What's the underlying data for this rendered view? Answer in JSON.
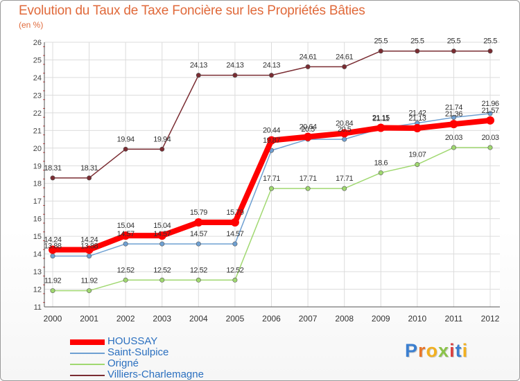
{
  "header": {
    "title": "Evolution du Taux de Taxe Foncière sur les Propriétés Bâties",
    "subtitle": "(en %)"
  },
  "chart_data": {
    "type": "line",
    "title": "Evolution du Taux de Taxe Foncière sur les Propriétés Bâties",
    "ylabel": "(en %)",
    "xlabel": "",
    "ylim": [
      11,
      26
    ],
    "yticks": [
      11,
      12,
      13,
      14,
      15,
      16,
      17,
      18,
      19,
      20,
      21,
      22,
      23,
      24,
      25,
      26
    ],
    "grid": true,
    "legend_position": "bottom-left",
    "categories": [
      "2000",
      "2001",
      "2002",
      "2003",
      "2004",
      "2005",
      "2006",
      "2007",
      "2008",
      "2009",
      "2010",
      "2011",
      "2012"
    ],
    "series": [
      {
        "name": "HOUSSAY",
        "color": "#ff0000",
        "values": [
          14.24,
          14.24,
          15.04,
          15.04,
          15.79,
          15.79,
          20.44,
          20.64,
          20.84,
          21.15,
          21.13,
          21.36,
          21.57
        ],
        "labels": [
          "14.24",
          "14.24",
          "15.04",
          "15.04",
          "15.79",
          "15.79",
          "20.44",
          "20.64",
          "20.84",
          "21.15",
          "21.13",
          "21.36",
          "21.57"
        ]
      },
      {
        "name": "Saint-Sulpice",
        "color": "#6fa0d2",
        "values": [
          13.88,
          13.88,
          14.57,
          14.57,
          14.57,
          14.57,
          19.87,
          20.5,
          20.5,
          21.11,
          21.42,
          21.74,
          21.96
        ],
        "labels": [
          "13.88",
          "13.88",
          "14.57",
          "14.57",
          "14.57",
          "14.57",
          "19.87",
          "20.5",
          "20.5",
          "21.11",
          "21.42",
          "21.74",
          "21.96"
        ]
      },
      {
        "name": "Origné",
        "color": "#a0d870",
        "values": [
          11.92,
          11.92,
          12.52,
          12.52,
          12.52,
          12.52,
          17.71,
          17.71,
          17.71,
          18.6,
          19.07,
          20.03,
          20.03
        ],
        "labels": [
          "11.92",
          "11.92",
          "12.52",
          "12.52",
          "12.52",
          "12.52",
          "17.71",
          "17.71",
          "17.71",
          "18.6",
          "19.07",
          "20.03",
          "20.03"
        ]
      },
      {
        "name": "Villiers-Charlemagne",
        "color": "#7a2c32",
        "values": [
          18.31,
          18.31,
          19.94,
          19.94,
          24.13,
          24.13,
          24.13,
          24.61,
          24.61,
          25.5,
          25.5,
          25.5,
          25.5
        ],
        "labels": [
          "18.31",
          "18.31",
          "19.94",
          "19.94",
          "24.13",
          "24.13",
          "24.13",
          "24.61",
          "24.61",
          "25.5",
          "25.5",
          "25.5",
          "25.5"
        ]
      }
    ]
  },
  "logo": {
    "letters": [
      "P",
      "r",
      "o",
      "x",
      "i",
      "t",
      "i"
    ],
    "colors": [
      "#3b7fd0",
      "#e8762a",
      "#f2b020",
      "#8bc34a",
      "#d94040",
      "#3b7fd0",
      "#f2b020"
    ]
  }
}
